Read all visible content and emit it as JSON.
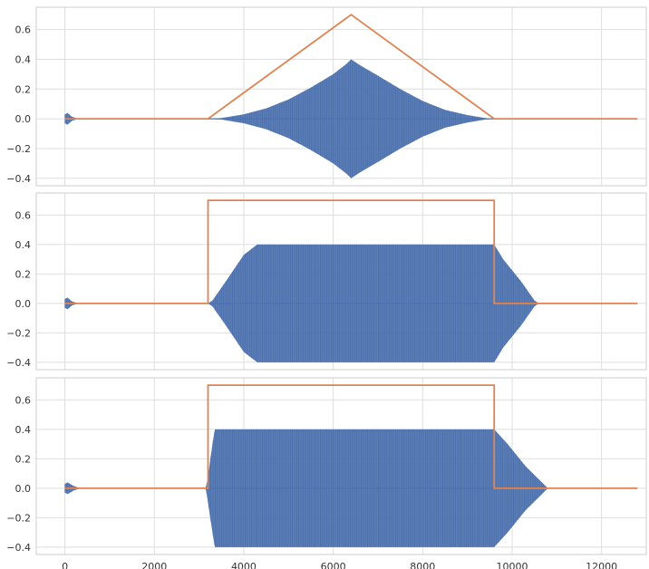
{
  "chart_data": [
    {
      "type": "line",
      "ylim": [
        -0.45,
        0.75
      ],
      "xlim": [
        -640,
        13000
      ],
      "yticks": [
        -0.4,
        -0.2,
        0.0,
        0.2,
        0.4,
        0.6
      ],
      "ytick_labels": [
        "−0.4",
        "−0.2",
        "0.0",
        "0.2",
        "0.4",
        "0.6"
      ],
      "grid": true,
      "series": [
        {
          "color": "#4c72b0",
          "style": "oscillating-band",
          "upper_envelope": [
            [
              0,
              0.03
            ],
            [
              60,
              0.04
            ],
            [
              150,
              0.015
            ],
            [
              300,
              0
            ],
            [
              3200,
              0
            ],
            [
              3500,
              0.005
            ],
            [
              4000,
              0.03
            ],
            [
              4500,
              0.07
            ],
            [
              5000,
              0.13
            ],
            [
              5500,
              0.21
            ],
            [
              6000,
              0.3
            ],
            [
              6300,
              0.37
            ],
            [
              6400,
              0.4
            ],
            [
              6600,
              0.36
            ],
            [
              7000,
              0.29
            ],
            [
              7500,
              0.2
            ],
            [
              8000,
              0.12
            ],
            [
              8500,
              0.06
            ],
            [
              9000,
              0.025
            ],
            [
              9400,
              0.005
            ],
            [
              9600,
              0
            ],
            [
              12800,
              0
            ]
          ],
          "lower_envelope": [
            [
              0,
              -0.03
            ],
            [
              60,
              -0.04
            ],
            [
              150,
              -0.015
            ],
            [
              300,
              0
            ],
            [
              3200,
              0
            ],
            [
              3500,
              -0.005
            ],
            [
              4000,
              -0.03
            ],
            [
              4500,
              -0.07
            ],
            [
              5000,
              -0.13
            ],
            [
              5500,
              -0.21
            ],
            [
              6000,
              -0.3
            ],
            [
              6300,
              -0.37
            ],
            [
              6400,
              -0.4
            ],
            [
              6600,
              -0.36
            ],
            [
              7000,
              -0.29
            ],
            [
              7500,
              -0.2
            ],
            [
              8000,
              -0.12
            ],
            [
              8500,
              -0.06
            ],
            [
              9000,
              -0.025
            ],
            [
              9400,
              -0.005
            ],
            [
              9600,
              0
            ],
            [
              12800,
              0
            ]
          ]
        },
        {
          "color": "#dd8452",
          "style": "line",
          "points": [
            [
              0,
              0
            ],
            [
              3200,
              0
            ],
            [
              6400,
              0.7
            ],
            [
              9600,
              0
            ],
            [
              12800,
              0
            ]
          ]
        }
      ]
    },
    {
      "type": "line",
      "ylim": [
        -0.45,
        0.75
      ],
      "xlim": [
        -640,
        13000
      ],
      "yticks": [
        -0.4,
        -0.2,
        0.0,
        0.2,
        0.4,
        0.6
      ],
      "ytick_labels": [
        "−0.4",
        "−0.2",
        "0.0",
        "0.2",
        "0.4",
        "0.6"
      ],
      "grid": true,
      "series": [
        {
          "color": "#4c72b0",
          "style": "oscillating-band",
          "upper_envelope": [
            [
              0,
              0.03
            ],
            [
              60,
              0.04
            ],
            [
              150,
              0.015
            ],
            [
              300,
              0
            ],
            [
              3200,
              0
            ],
            [
              3300,
              0.02
            ],
            [
              3600,
              0.15
            ],
            [
              4000,
              0.33
            ],
            [
              4300,
              0.4
            ],
            [
              9600,
              0.4
            ],
            [
              9800,
              0.3
            ],
            [
              10200,
              0.15
            ],
            [
              10500,
              0.02
            ],
            [
              10600,
              0
            ],
            [
              12800,
              0
            ]
          ],
          "lower_envelope": [
            [
              0,
              -0.03
            ],
            [
              60,
              -0.04
            ],
            [
              150,
              -0.015
            ],
            [
              300,
              0
            ],
            [
              3200,
              0
            ],
            [
              3300,
              -0.02
            ],
            [
              3600,
              -0.15
            ],
            [
              4000,
              -0.33
            ],
            [
              4300,
              -0.4
            ],
            [
              9600,
              -0.4
            ],
            [
              9800,
              -0.3
            ],
            [
              10200,
              -0.15
            ],
            [
              10500,
              -0.02
            ],
            [
              10600,
              0
            ],
            [
              12800,
              0
            ]
          ]
        },
        {
          "color": "#dd8452",
          "style": "line",
          "points": [
            [
              0,
              0
            ],
            [
              3200,
              0
            ],
            [
              3200,
              0.7
            ],
            [
              9600,
              0.7
            ],
            [
              9600,
              0
            ],
            [
              12800,
              0
            ]
          ]
        }
      ]
    },
    {
      "type": "line",
      "ylim": [
        -0.45,
        0.75
      ],
      "xlim": [
        -640,
        13000
      ],
      "xticks": [
        0,
        2000,
        4000,
        6000,
        8000,
        10000,
        12000
      ],
      "xtick_labels": [
        "0",
        "2000",
        "4000",
        "6000",
        "8000",
        "10000",
        "12000"
      ],
      "yticks": [
        -0.4,
        -0.2,
        0.0,
        0.2,
        0.4,
        0.6
      ],
      "ytick_labels": [
        "−0.4",
        "−0.2",
        "0.0",
        "0.2",
        "0.4",
        "0.6"
      ],
      "grid": true,
      "series": [
        {
          "color": "#4c72b0",
          "style": "oscillating-band",
          "upper_envelope": [
            [
              0,
              0.03
            ],
            [
              60,
              0.04
            ],
            [
              200,
              0.015
            ],
            [
              350,
              0
            ],
            [
              3150,
              0
            ],
            [
              3200,
              0.08
            ],
            [
              3300,
              0.3
            ],
            [
              3350,
              0.4
            ],
            [
              9600,
              0.4
            ],
            [
              9900,
              0.3
            ],
            [
              10300,
              0.15
            ],
            [
              10700,
              0.03
            ],
            [
              10800,
              0
            ],
            [
              12800,
              0
            ]
          ],
          "lower_envelope": [
            [
              0,
              -0.03
            ],
            [
              60,
              -0.04
            ],
            [
              200,
              -0.015
            ],
            [
              350,
              0
            ],
            [
              3150,
              0
            ],
            [
              3200,
              -0.1
            ],
            [
              3300,
              -0.3
            ],
            [
              3350,
              -0.4
            ],
            [
              9600,
              -0.4
            ],
            [
              9900,
              -0.3
            ],
            [
              10300,
              -0.15
            ],
            [
              10700,
              -0.03
            ],
            [
              10800,
              0
            ],
            [
              12800,
              0
            ]
          ]
        },
        {
          "color": "#dd8452",
          "style": "line",
          "points": [
            [
              0,
              0
            ],
            [
              3200,
              0
            ],
            [
              3200,
              0.7
            ],
            [
              9600,
              0.7
            ],
            [
              9600,
              0
            ],
            [
              12800,
              0
            ]
          ]
        }
      ]
    }
  ]
}
